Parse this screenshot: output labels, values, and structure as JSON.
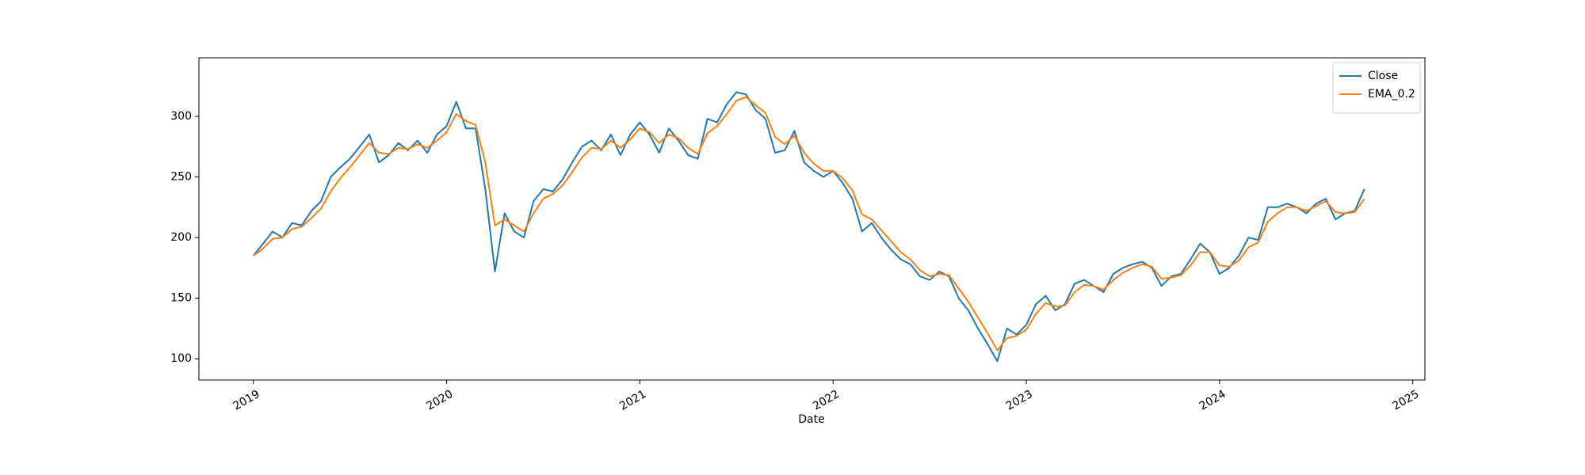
{
  "chart_data": {
    "type": "line",
    "xlabel": "Date",
    "x": [
      2019.0,
      2019.05,
      2019.1,
      2019.15,
      2019.2,
      2019.25,
      2019.3,
      2019.35,
      2019.4,
      2019.45,
      2019.5,
      2019.55,
      2019.6,
      2019.65,
      2019.7,
      2019.75,
      2019.8,
      2019.85,
      2019.9,
      2019.95,
      2020.0,
      2020.05,
      2020.1,
      2020.15,
      2020.2,
      2020.25,
      2020.3,
      2020.35,
      2020.4,
      2020.45,
      2020.5,
      2020.55,
      2020.6,
      2020.65,
      2020.7,
      2020.75,
      2020.8,
      2020.85,
      2020.9,
      2020.95,
      2021.0,
      2021.05,
      2021.1,
      2021.15,
      2021.2,
      2021.25,
      2021.3,
      2021.35,
      2021.4,
      2021.45,
      2021.5,
      2021.55,
      2021.6,
      2021.65,
      2021.7,
      2021.75,
      2021.8,
      2021.85,
      2021.9,
      2021.95,
      2022.0,
      2022.05,
      2022.1,
      2022.15,
      2022.2,
      2022.25,
      2022.3,
      2022.35,
      2022.4,
      2022.45,
      2022.5,
      2022.55,
      2022.6,
      2022.65,
      2022.7,
      2022.75,
      2022.8,
      2022.85,
      2022.9,
      2022.95,
      2023.0,
      2023.05,
      2023.1,
      2023.15,
      2023.2,
      2023.25,
      2023.3,
      2023.35,
      2023.4,
      2023.45,
      2023.5,
      2023.55,
      2023.6,
      2023.65,
      2023.7,
      2023.75,
      2023.8,
      2023.85,
      2023.9,
      2023.95,
      2024.0,
      2024.05,
      2024.1,
      2024.15,
      2024.2,
      2024.25,
      2024.3,
      2024.35,
      2024.4,
      2024.45,
      2024.5,
      2024.55,
      2024.6,
      2024.65,
      2024.7,
      2024.75
    ],
    "series": [
      {
        "name": "Close",
        "color": "#1f77b4",
        "values": [
          185,
          195,
          205,
          200,
          212,
          210,
          222,
          230,
          250,
          258,
          265,
          275,
          285,
          262,
          268,
          278,
          272,
          280,
          270,
          285,
          292,
          312,
          290,
          290,
          240,
          172,
          220,
          205,
          200,
          230,
          240,
          238,
          248,
          262,
          275,
          280,
          272,
          285,
          268,
          285,
          295,
          285,
          270,
          290,
          280,
          268,
          265,
          298,
          295,
          310,
          320,
          318,
          305,
          298,
          270,
          272,
          288,
          262,
          255,
          250,
          255,
          245,
          232,
          205,
          212,
          200,
          190,
          182,
          178,
          168,
          165,
          172,
          168,
          150,
          140,
          125,
          112,
          98,
          125,
          120,
          128,
          145,
          152,
          140,
          145,
          162,
          165,
          160,
          155,
          170,
          175,
          178,
          180,
          175,
          160,
          168,
          170,
          182,
          195,
          188,
          170,
          175,
          185,
          200,
          198,
          225,
          225,
          228,
          225,
          220,
          228,
          232,
          215,
          220,
          222,
          240
        ]
      },
      {
        "name": "EMA_0.2",
        "color": "#ff7f0e",
        "values": [
          185,
          191,
          199,
          200,
          207,
          209,
          216,
          224,
          238,
          249,
          258,
          268,
          278,
          270,
          269,
          274,
          273,
          277,
          274,
          280,
          287,
          302,
          296,
          293,
          262,
          210,
          215,
          210,
          205,
          220,
          232,
          236,
          243,
          254,
          266,
          274,
          273,
          280,
          274,
          281,
          290,
          287,
          278,
          285,
          282,
          274,
          269,
          286,
          292,
          302,
          313,
          316,
          309,
          303,
          283,
          277,
          284,
          270,
          261,
          255,
          255,
          249,
          239,
          219,
          215,
          206,
          197,
          188,
          182,
          173,
          168,
          170,
          169,
          158,
          147,
          134,
          121,
          107,
          117,
          119,
          124,
          137,
          146,
          143,
          144,
          155,
          161,
          160,
          157,
          165,
          171,
          175,
          178,
          176,
          166,
          167,
          169,
          177,
          188,
          188,
          177,
          176,
          181,
          192,
          196,
          213,
          220,
          225,
          225,
          222,
          226,
          230,
          221,
          220,
          221,
          232
        ]
      }
    ],
    "xlim": [
      2018.718,
      2025.063
    ],
    "xticks": [
      2019,
      2020,
      2021,
      2022,
      2023,
      2024,
      2025
    ],
    "ylim": [
      82.5,
      348.3
    ],
    "yticks": [
      100,
      150,
      200,
      250,
      300
    ],
    "grid": false,
    "legend": "upper right"
  }
}
